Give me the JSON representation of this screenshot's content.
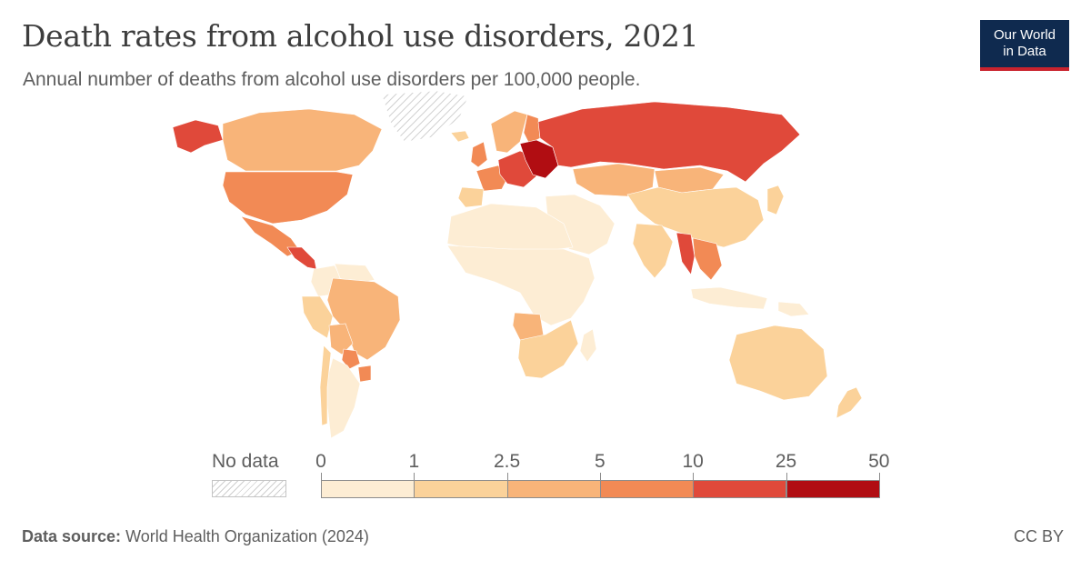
{
  "header": {
    "title": "Death rates from alcohol use disorders, 2021",
    "subtitle": "Annual number of deaths from alcohol use disorders per 100,000 people."
  },
  "logo": {
    "line1": "Our World",
    "line2": "in Data"
  },
  "legend": {
    "no_data_label": "No data",
    "ticks": [
      "0",
      "1",
      "2.5",
      "5",
      "10",
      "25",
      "50"
    ],
    "bins": [
      {
        "range": "0–1",
        "color": "#fdedd4"
      },
      {
        "range": "1–2.5",
        "color": "#fbd29a"
      },
      {
        "range": "2.5–5",
        "color": "#f8b479"
      },
      {
        "range": "5–10",
        "color": "#f28a55"
      },
      {
        "range": "10–25",
        "color": "#e0493a"
      },
      {
        "range": "25–50",
        "color": "#b10d12"
      }
    ],
    "no_data_color": "#e8e8e8"
  },
  "chart_data": {
    "type": "choropleth",
    "regions": [
      {
        "region": "Greenland",
        "bin": "No data"
      },
      {
        "region": "Alaska",
        "bin": "10–25"
      },
      {
        "region": "Canada",
        "bin": "2.5–5"
      },
      {
        "region": "United States",
        "bin": "5–10"
      },
      {
        "region": "Mexico",
        "bin": "5–10"
      },
      {
        "region": "Central America",
        "bin": "10–25"
      },
      {
        "region": "Colombia",
        "bin": "0–1"
      },
      {
        "region": "Venezuela",
        "bin": "0–1"
      },
      {
        "region": "Peru",
        "bin": "1–2.5"
      },
      {
        "region": "Brazil",
        "bin": "2.5–5"
      },
      {
        "region": "Bolivia",
        "bin": "2.5–5"
      },
      {
        "region": "Paraguay",
        "bin": "5–10"
      },
      {
        "region": "Uruguay",
        "bin": "5–10"
      },
      {
        "region": "Argentina",
        "bin": "0–1"
      },
      {
        "region": "Chile",
        "bin": "1–2.5"
      },
      {
        "region": "Iceland",
        "bin": "1–2.5"
      },
      {
        "region": "United Kingdom",
        "bin": "5–10"
      },
      {
        "region": "Scandinavia",
        "bin": "2.5–5"
      },
      {
        "region": "Finland",
        "bin": "5–10"
      },
      {
        "region": "France",
        "bin": "5–10"
      },
      {
        "region": "Iberia",
        "bin": "1–2.5"
      },
      {
        "region": "Central Europe",
        "bin": "10–25"
      },
      {
        "region": "Eastern Europe",
        "bin": "25–50"
      },
      {
        "region": "Russia",
        "bin": "10–25"
      },
      {
        "region": "Kazakhstan",
        "bin": "2.5–5"
      },
      {
        "region": "Mongolia",
        "bin": "2.5–5"
      },
      {
        "region": "China",
        "bin": "1–2.5"
      },
      {
        "region": "Middle East",
        "bin": "0–1"
      },
      {
        "region": "India",
        "bin": "1–2.5"
      },
      {
        "region": "Myanmar",
        "bin": "10–25"
      },
      {
        "region": "Mainland Southeast Asia",
        "bin": "5–10"
      },
      {
        "region": "Indonesia",
        "bin": "0–1"
      },
      {
        "region": "Papua New Guinea",
        "bin": "0–1"
      },
      {
        "region": "North Africa",
        "bin": "0–1"
      },
      {
        "region": "West and Central Africa",
        "bin": "0–1"
      },
      {
        "region": "Angola",
        "bin": "2.5–5"
      },
      {
        "region": "Southern Africa",
        "bin": "1–2.5"
      },
      {
        "region": "Madagascar",
        "bin": "0–1"
      },
      {
        "region": "Australia",
        "bin": "1–2.5"
      },
      {
        "region": "New Zealand",
        "bin": "1–2.5"
      },
      {
        "region": "Japan",
        "bin": "1–2.5"
      }
    ]
  },
  "footer": {
    "source_label": "Data source:",
    "source_text": "World Health Organization (2024)",
    "license": "CC BY"
  }
}
